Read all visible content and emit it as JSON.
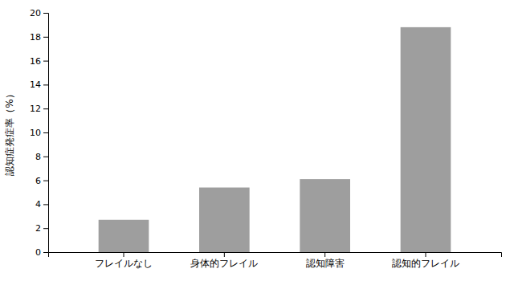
{
  "chart_data": {
    "type": "bar",
    "categories": [
      "フレイルなし",
      "身体的フレイル",
      "認知障害",
      "認知的フレイル"
    ],
    "values": [
      2.7,
      5.4,
      6.1,
      18.8
    ],
    "color": "#9e9e9e",
    "ylabel": "認知症発症率（%）",
    "ylim": [
      0,
      20
    ],
    "yticks": [
      0,
      2,
      4,
      6,
      8,
      10,
      12,
      14,
      16,
      18,
      20
    ],
    "grid": false
  }
}
